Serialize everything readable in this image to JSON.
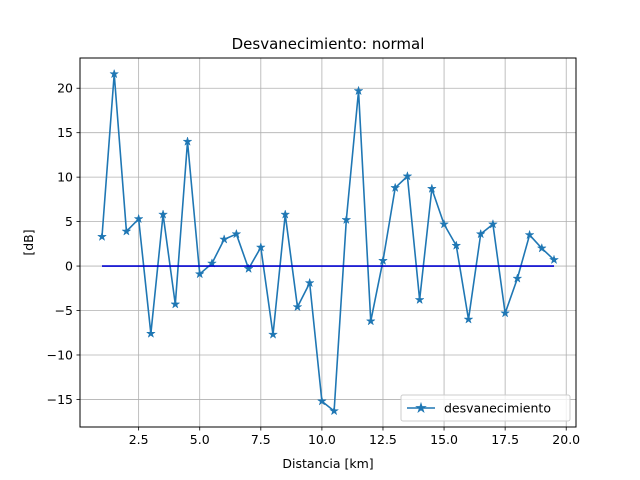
{
  "chart_data": {
    "type": "line",
    "title": "Desvanecimiento: normal",
    "xlabel": "Distancia [km]",
    "ylabel": "[dB]",
    "xlim": [
      0.1,
      20.4
    ],
    "ylim": [
      -18.1,
      23.4
    ],
    "xticks": [
      2.5,
      5.0,
      7.5,
      10.0,
      12.5,
      15.0,
      17.5,
      20.0
    ],
    "xtick_labels": [
      "2.5",
      "5.0",
      "7.5",
      "10.0",
      "12.5",
      "15.0",
      "17.5",
      "20.0"
    ],
    "yticks": [
      -15,
      -10,
      -5,
      0,
      5,
      10,
      15,
      20
    ],
    "ytick_labels": [
      "−15",
      "−10",
      "−5",
      "0",
      "5",
      "10",
      "15",
      "20"
    ],
    "grid": true,
    "legend_position": "lower-right",
    "series": [
      {
        "name": "desvanecimiento",
        "color": "#1f77b4",
        "marker": "star",
        "x": [
          1.0,
          1.5,
          2.0,
          2.5,
          3.0,
          3.5,
          4.0,
          4.5,
          5.0,
          5.5,
          6.0,
          6.5,
          7.0,
          7.5,
          8.0,
          8.5,
          9.0,
          9.5,
          10.0,
          10.5,
          11.0,
          11.5,
          12.0,
          12.5,
          13.0,
          13.5,
          14.0,
          14.5,
          15.0,
          15.5,
          16.0,
          16.5,
          17.0,
          17.5,
          18.0,
          18.5,
          19.0,
          19.5
        ],
        "y": [
          3.3,
          21.6,
          3.9,
          5.3,
          -7.6,
          5.8,
          -4.3,
          14.0,
          -0.9,
          0.3,
          3.0,
          3.6,
          -0.3,
          2.1,
          -7.7,
          5.8,
          -4.6,
          -1.9,
          -15.2,
          -16.3,
          5.2,
          19.7,
          -6.2,
          0.6,
          8.8,
          10.1,
          -3.8,
          8.7,
          4.7,
          2.3,
          -6.0,
          3.6,
          4.7,
          -5.3,
          -1.4,
          3.5,
          2.0,
          0.7
        ]
      },
      {
        "name": "",
        "color": "#0000cd",
        "marker": "none",
        "x": [
          1.0,
          19.5
        ],
        "y": [
          0.0,
          0.0
        ]
      }
    ]
  }
}
